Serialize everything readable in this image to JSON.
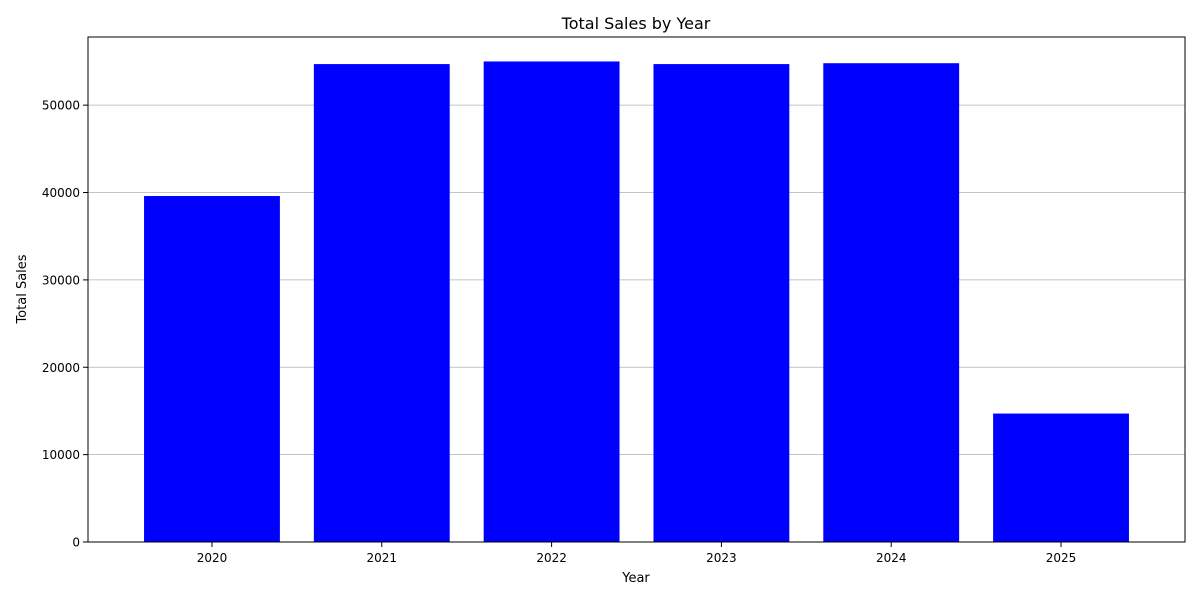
{
  "chart_data": {
    "type": "bar",
    "title": "Total Sales by Year",
    "xlabel": "Year",
    "ylabel": "Total Sales",
    "categories": [
      "2020",
      "2021",
      "2022",
      "2023",
      "2024",
      "2025"
    ],
    "values": [
      39600,
      54700,
      55000,
      54700,
      54800,
      14700
    ],
    "ylim": [
      0,
      57800
    ],
    "yticks": [
      0,
      10000,
      20000,
      30000,
      40000,
      50000
    ],
    "ytick_labels": [
      "0",
      "10000",
      "20000",
      "30000",
      "40000",
      "50000"
    ],
    "grid": "y-axis major",
    "legend": "none",
    "colors": {
      "bar": "#0000ff",
      "grid": "#b0b0b0",
      "axis": "#000000"
    }
  }
}
